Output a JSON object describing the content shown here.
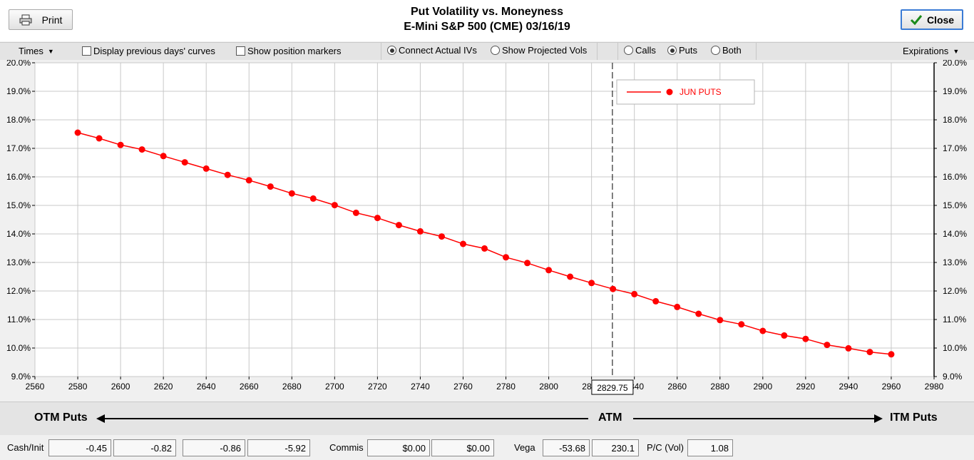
{
  "header": {
    "title": "Put Volatility vs. Moneyness",
    "subtitle": "E-Mini S&P 500 (CME) 03/16/19",
    "print_label": "Print",
    "close_label": "Close"
  },
  "toolbar": {
    "times_label": "Times",
    "display_prev_label": "Display previous days' curves",
    "display_prev_checked": false,
    "show_markers_label": "Show position markers",
    "show_markers_checked": false,
    "connect_ivs_label": "Connect Actual IVs",
    "projected_vols_label": "Show Projected Vols",
    "calls_label": "Calls",
    "puts_label": "Puts",
    "both_label": "Both",
    "selected_type": "Puts",
    "expirations_label": "Expirations"
  },
  "chart_data": {
    "type": "line",
    "title": "Put Volatility vs. Moneyness",
    "xlabel": "",
    "ylabel": "",
    "xlim": [
      2560,
      2980
    ],
    "ylim": [
      9.0,
      20.0
    ],
    "x_ticks": [
      "2560",
      "2580",
      "2600",
      "2620",
      "2640",
      "2660",
      "2680",
      "2700",
      "2720",
      "2740",
      "2760",
      "2780",
      "2800",
      "2820",
      "2840",
      "2860",
      "2880",
      "2900",
      "2920",
      "2940",
      "2960",
      "2980"
    ],
    "y_ticks": [
      "9.0%",
      "10.0%",
      "11.0%",
      "12.0%",
      "13.0%",
      "14.0%",
      "15.0%",
      "16.0%",
      "17.0%",
      "18.0%",
      "19.0%",
      "20.0%"
    ],
    "grid": true,
    "legend_position": "top-right",
    "atm_marker": {
      "value": 2829.75,
      "label": "2829.75"
    },
    "series": [
      {
        "name": "JUN PUTS",
        "color": "#ff0000",
        "x": [
          2580,
          2590,
          2600,
          2610,
          2620,
          2630,
          2640,
          2650,
          2660,
          2670,
          2680,
          2690,
          2700,
          2710,
          2720,
          2730,
          2740,
          2750,
          2760,
          2770,
          2780,
          2790,
          2800,
          2810,
          2820,
          2830,
          2840,
          2850,
          2860,
          2870,
          2880,
          2890,
          2900,
          2910,
          2920,
          2930,
          2940,
          2950,
          2960
        ],
        "y": [
          17.55,
          17.35,
          17.12,
          16.96,
          16.73,
          16.51,
          16.29,
          16.07,
          15.88,
          15.66,
          15.42,
          15.24,
          15.01,
          14.74,
          14.56,
          14.31,
          14.09,
          13.91,
          13.65,
          13.49,
          13.18,
          12.98,
          12.73,
          12.5,
          12.28,
          12.07,
          11.89,
          11.64,
          11.44,
          11.2,
          10.98,
          10.83,
          10.6,
          10.44,
          10.32,
          10.11,
          9.99,
          9.86,
          9.78
        ]
      }
    ]
  },
  "moneyness": {
    "otm_label": "OTM Puts",
    "atm_label": "ATM",
    "itm_label": "ITM Puts"
  },
  "status": {
    "cash_label": "Cash/Init",
    "v1": "-0.45",
    "v2": "-0.82",
    "v3": "-0.86",
    "v4": "-5.92",
    "commis_label": "Commis",
    "commis1": "$0.00",
    "commis2": "$0.00",
    "vega_label": "Vega",
    "vega1": "-53.68",
    "vega2": "230.1",
    "pc_label": "P/C (Vol)",
    "pc_value": "1.08"
  }
}
